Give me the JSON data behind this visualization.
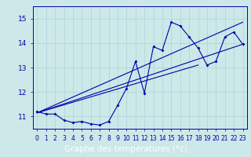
{
  "title": "",
  "xlabel": "Graphe des températures (°c)",
  "ylabel": "",
  "bg_color": "#cce8e8",
  "plot_bg_color": "#cce8e8",
  "line_color": "#0000aa",
  "x_data": [
    0,
    1,
    2,
    3,
    4,
    5,
    6,
    7,
    8,
    9,
    10,
    11,
    12,
    13,
    14,
    15,
    16,
    17,
    18,
    19,
    20,
    21,
    22,
    23
  ],
  "temp_data": [
    11.2,
    11.1,
    11.1,
    10.85,
    10.75,
    10.8,
    10.7,
    10.65,
    10.8,
    11.45,
    12.15,
    13.25,
    11.95,
    13.85,
    13.7,
    14.85,
    14.7,
    14.25,
    13.8,
    13.1,
    13.25,
    14.25,
    14.45,
    13.95
  ],
  "trend1_x": [
    0,
    23
  ],
  "trend1_y": [
    11.15,
    14.85
  ],
  "trend2_x": [
    0,
    23
  ],
  "trend2_y": [
    11.15,
    13.95
  ],
  "trend3_x": [
    0,
    18
  ],
  "trend3_y": [
    11.15,
    13.1
  ],
  "ylim": [
    10.5,
    15.5
  ],
  "xlim": [
    -0.5,
    23.5
  ],
  "yticks": [
    11,
    12,
    13,
    14,
    15
  ],
  "xticks": [
    0,
    1,
    2,
    3,
    4,
    5,
    6,
    7,
    8,
    9,
    10,
    11,
    12,
    13,
    14,
    15,
    16,
    17,
    18,
    19,
    20,
    21,
    22,
    23
  ],
  "grid_color": "#aad4d4",
  "xlabel_bg": "#0000aa",
  "xlabel_fg": "#ffffff",
  "xlabel_fontsize": 7.5,
  "tick_fontsize": 5.5,
  "ytick_fontsize": 6.5
}
